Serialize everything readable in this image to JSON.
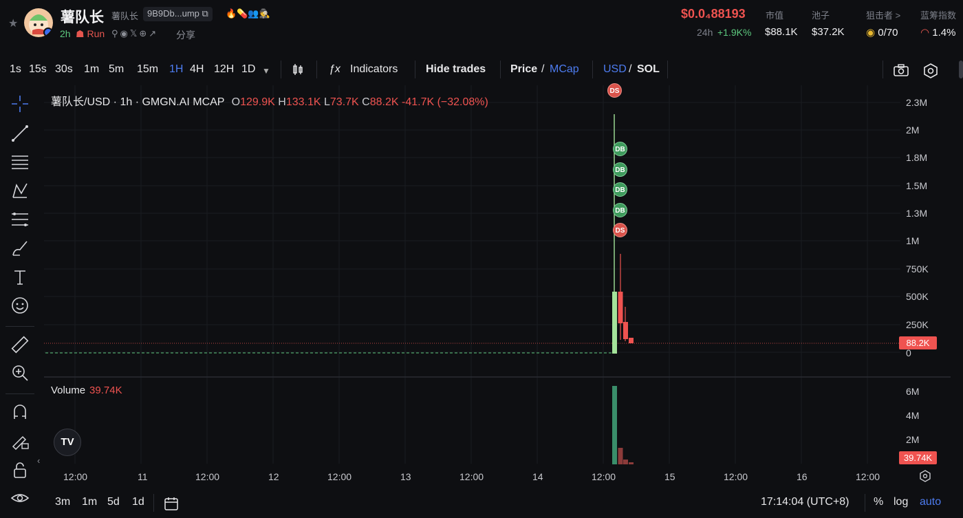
{
  "header": {
    "name": "薯队长",
    "sub_name": "薯队长",
    "address": "9B9Db...ump",
    "age": "2h",
    "run_label": "Run",
    "share_label": "分享",
    "price": "$0.0₄88193",
    "chg24_label": "24h",
    "chg24": "+1.9K%",
    "stats": [
      {
        "label": "市值",
        "value": "$88.1K"
      },
      {
        "label": "池子",
        "value": "$37.2K"
      },
      {
        "label": "狙击者 >",
        "value": "0/70"
      },
      {
        "label": "蓝筹指数",
        "value": "1.4%"
      }
    ]
  },
  "toolbar": {
    "intervals": [
      "1s",
      "15s",
      "30s",
      "1m",
      "5m",
      "15m",
      "1H",
      "4H",
      "12H",
      "1D"
    ],
    "active_interval": "1H",
    "indicators_label": "Indicators",
    "hide_trades_label": "Hide trades",
    "price_label": "Price",
    "mcap_label": "MCap",
    "usd_label": "USD",
    "sol_label": "SOL",
    "slash": "/"
  },
  "legend": {
    "symbol": "薯队长/USD · 1h · GMGN.AI MCAP",
    "o_label": "O",
    "o": "129.9K",
    "h_label": "H",
    "h": "133.1K",
    "l_label": "L",
    "l": "73.7K",
    "c_label": "C",
    "c": "88.2K",
    "change": "-41.7K (−32.08%)"
  },
  "volume_legend": {
    "label": "Volume",
    "value": "39.74K"
  },
  "chart_data": {
    "type": "candlestick",
    "y_ticks": [
      "2.3M",
      "2M",
      "1.8M",
      "1.5M",
      "1.3M",
      "1M",
      "750K",
      "500K",
      "250K",
      "0"
    ],
    "vol_ticks": [
      "6M",
      "4M",
      "2M"
    ],
    "x_ticks": [
      "12:00",
      "11",
      "12:00",
      "12",
      "12:00",
      "13",
      "12:00",
      "14",
      "12:00",
      "15",
      "12:00",
      "16",
      "12:00"
    ],
    "last_price_label": "88.2K",
    "last_volume_label": "39.74K",
    "markers": [
      "DS",
      "DB",
      "DB",
      "DB",
      "DB",
      "DS"
    ]
  },
  "bottom": {
    "ranges": [
      "3m",
      "1m",
      "5d",
      "1d"
    ],
    "time": "17:14:04 (UTC+8)",
    "percent": "%",
    "log": "log",
    "auto": "auto"
  },
  "colors": {
    "up": "#a4e39a",
    "down": "#ef5350",
    "accent": "#4d7cf0"
  }
}
